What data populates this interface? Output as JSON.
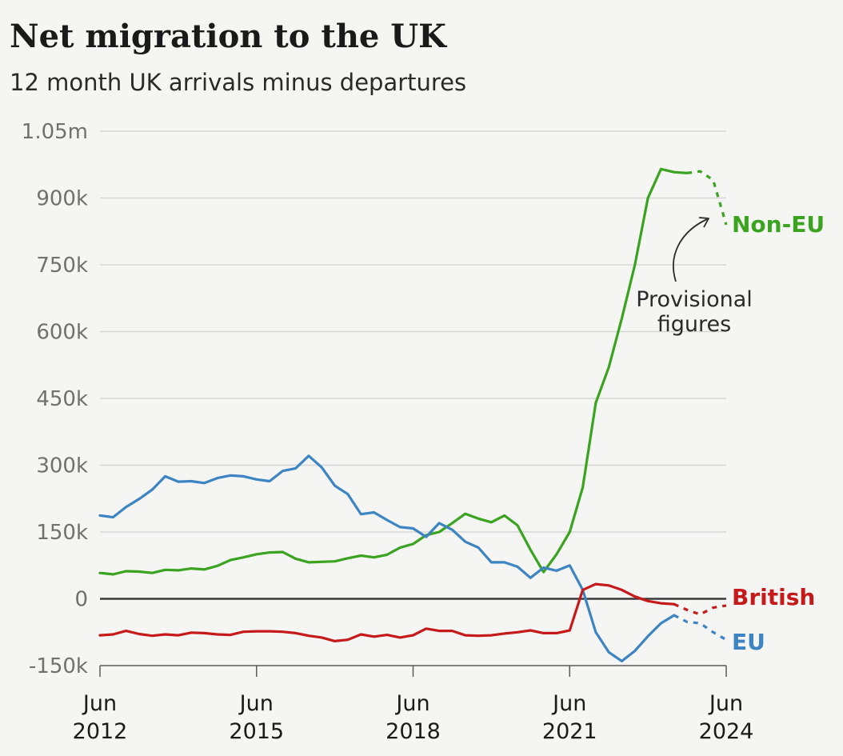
{
  "header": {
    "title": "Net migration to the UK",
    "subtitle": "12 month UK arrivals minus departures"
  },
  "chart_data": {
    "type": "line",
    "title": "Net migration to the UK",
    "subtitle": "12 month UK arrivals minus departures",
    "xlabel": "",
    "ylabel": "",
    "xlim": [
      "2012-06",
      "2024-06"
    ],
    "ylim": [
      -150000,
      1050000
    ],
    "y_ticks": [
      {
        "value": 1050000,
        "label": "1.05m"
      },
      {
        "value": 900000,
        "label": "900k"
      },
      {
        "value": 750000,
        "label": "750k"
      },
      {
        "value": 600000,
        "label": "600k"
      },
      {
        "value": 450000,
        "label": "450k"
      },
      {
        "value": 300000,
        "label": "300k"
      },
      {
        "value": 150000,
        "label": "150k"
      },
      {
        "value": 0,
        "label": "0"
      },
      {
        "value": -150000,
        "label": "-150k"
      }
    ],
    "x_ticks": [
      {
        "value": "2012-06",
        "label1": "Jun",
        "label2": "2012"
      },
      {
        "value": "2015-06",
        "label1": "Jun",
        "label2": "2015"
      },
      {
        "value": "2018-06",
        "label1": "Jun",
        "label2": "2018"
      },
      {
        "value": "2021-06",
        "label1": "Jun",
        "label2": "2021"
      },
      {
        "value": "2024-06",
        "label1": "Jun",
        "label2": "2024"
      }
    ],
    "grid": true,
    "series": [
      {
        "name": "Non-EU",
        "color": "#3aa31f",
        "points": [
          [
            "2012-06",
            58000
          ],
          [
            "2012-09",
            55000
          ],
          [
            "2012-12",
            62000
          ],
          [
            "2013-03",
            61000
          ],
          [
            "2013-06",
            58000
          ],
          [
            "2013-09",
            65000
          ],
          [
            "2013-12",
            64000
          ],
          [
            "2014-03",
            68000
          ],
          [
            "2014-06",
            66000
          ],
          [
            "2014-09",
            74000
          ],
          [
            "2014-12",
            87000
          ],
          [
            "2015-03",
            93000
          ],
          [
            "2015-06",
            100000
          ],
          [
            "2015-09",
            104000
          ],
          [
            "2015-12",
            105000
          ],
          [
            "2016-03",
            90000
          ],
          [
            "2016-06",
            82000
          ],
          [
            "2016-09",
            83000
          ],
          [
            "2016-12",
            84000
          ],
          [
            "2017-03",
            91000
          ],
          [
            "2017-06",
            97000
          ],
          [
            "2017-09",
            93000
          ],
          [
            "2017-12",
            99000
          ],
          [
            "2018-03",
            115000
          ],
          [
            "2018-06",
            123000
          ],
          [
            "2018-09",
            143000
          ],
          [
            "2018-12",
            150000
          ],
          [
            "2019-03",
            170000
          ],
          [
            "2019-06",
            191000
          ],
          [
            "2019-09",
            180000
          ],
          [
            "2019-12",
            172000
          ],
          [
            "2020-03",
            187000
          ],
          [
            "2020-06",
            165000
          ],
          [
            "2020-09",
            110000
          ],
          [
            "2020-12",
            60000
          ],
          [
            "2021-03",
            100000
          ],
          [
            "2021-06",
            150000
          ],
          [
            "2021-09",
            250000
          ],
          [
            "2021-12",
            440000
          ],
          [
            "2022-03",
            520000
          ],
          [
            "2022-06",
            630000
          ],
          [
            "2022-09",
            750000
          ],
          [
            "2022-12",
            900000
          ],
          [
            "2023-03",
            965000
          ],
          [
            "2023-06",
            958000
          ],
          [
            "2023-09",
            956000
          ]
        ],
        "provisional": [
          [
            "2023-12",
            960000
          ],
          [
            "2024-03",
            940000
          ],
          [
            "2024-06",
            840000
          ]
        ]
      },
      {
        "name": "EU",
        "color": "#3c84c2",
        "points": [
          [
            "2012-06",
            187000
          ],
          [
            "2012-09",
            183000
          ],
          [
            "2012-12",
            206000
          ],
          [
            "2013-03",
            224000
          ],
          [
            "2013-06",
            245000
          ],
          [
            "2013-09",
            275000
          ],
          [
            "2013-12",
            263000
          ],
          [
            "2014-03",
            264000
          ],
          [
            "2014-06",
            260000
          ],
          [
            "2014-09",
            271000
          ],
          [
            "2014-12",
            277000
          ],
          [
            "2015-03",
            275000
          ],
          [
            "2015-06",
            268000
          ],
          [
            "2015-09",
            264000
          ],
          [
            "2015-12",
            287000
          ],
          [
            "2016-03",
            293000
          ],
          [
            "2016-06",
            321000
          ],
          [
            "2016-09",
            295000
          ],
          [
            "2016-12",
            254000
          ],
          [
            "2017-03",
            235000
          ],
          [
            "2017-06",
            190000
          ],
          [
            "2017-09",
            194000
          ],
          [
            "2017-12",
            177000
          ],
          [
            "2018-03",
            161000
          ],
          [
            "2018-06",
            158000
          ],
          [
            "2018-09",
            139000
          ],
          [
            "2018-12",
            170000
          ],
          [
            "2019-03",
            155000
          ],
          [
            "2019-06",
            128000
          ],
          [
            "2019-09",
            115000
          ],
          [
            "2019-12",
            82000
          ],
          [
            "2020-03",
            82000
          ],
          [
            "2020-06",
            72000
          ],
          [
            "2020-09",
            47000
          ],
          [
            "2020-12",
            70000
          ],
          [
            "2021-03",
            63000
          ],
          [
            "2021-06",
            75000
          ],
          [
            "2021-09",
            20000
          ],
          [
            "2021-12",
            -75000
          ],
          [
            "2022-03",
            -120000
          ],
          [
            "2022-06",
            -140000
          ],
          [
            "2022-09",
            -117000
          ],
          [
            "2022-12",
            -84000
          ],
          [
            "2023-03",
            -55000
          ],
          [
            "2023-06",
            -37000
          ]
        ],
        "provisional": [
          [
            "2023-09",
            -52000
          ],
          [
            "2023-12",
            -55000
          ],
          [
            "2024-03",
            -75000
          ],
          [
            "2024-06",
            -92000
          ]
        ]
      },
      {
        "name": "British",
        "color": "#c61a1a",
        "points": [
          [
            "2012-06",
            -82000
          ],
          [
            "2012-09",
            -80000
          ],
          [
            "2012-12",
            -72000
          ],
          [
            "2013-03",
            -79000
          ],
          [
            "2013-06",
            -83000
          ],
          [
            "2013-09",
            -80000
          ],
          [
            "2013-12",
            -82000
          ],
          [
            "2014-03",
            -76000
          ],
          [
            "2014-06",
            -77000
          ],
          [
            "2014-09",
            -80000
          ],
          [
            "2014-12",
            -81000
          ],
          [
            "2015-03",
            -74000
          ],
          [
            "2015-06",
            -73000
          ],
          [
            "2015-09",
            -73000
          ],
          [
            "2015-12",
            -74000
          ],
          [
            "2016-03",
            -77000
          ],
          [
            "2016-06",
            -83000
          ],
          [
            "2016-09",
            -87000
          ],
          [
            "2016-12",
            -95000
          ],
          [
            "2017-03",
            -92000
          ],
          [
            "2017-06",
            -80000
          ],
          [
            "2017-09",
            -85000
          ],
          [
            "2017-12",
            -81000
          ],
          [
            "2018-03",
            -87000
          ],
          [
            "2018-06",
            -82000
          ],
          [
            "2018-09",
            -67000
          ],
          [
            "2018-12",
            -72000
          ],
          [
            "2019-03",
            -72000
          ],
          [
            "2019-06",
            -82000
          ],
          [
            "2019-09",
            -83000
          ],
          [
            "2019-12",
            -82000
          ],
          [
            "2020-03",
            -78000
          ],
          [
            "2020-06",
            -75000
          ],
          [
            "2020-09",
            -71000
          ],
          [
            "2020-12",
            -77000
          ],
          [
            "2021-03",
            -77000
          ],
          [
            "2021-06",
            -71000
          ],
          [
            "2021-09",
            20000
          ],
          [
            "2021-12",
            33000
          ],
          [
            "2022-03",
            30000
          ],
          [
            "2022-06",
            20000
          ],
          [
            "2022-09",
            5000
          ],
          [
            "2022-12",
            -5000
          ],
          [
            "2023-03",
            -10000
          ],
          [
            "2023-06",
            -12000
          ]
        ],
        "provisional": [
          [
            "2023-09",
            -25000
          ],
          [
            "2023-12",
            -35000
          ],
          [
            "2024-03",
            -20000
          ],
          [
            "2024-06",
            -15000
          ]
        ]
      }
    ],
    "series_labels": [
      "Non-EU",
      "British",
      "EU"
    ],
    "annotations": [
      {
        "text_lines": [
          "Provisional",
          "figures"
        ]
      }
    ]
  }
}
